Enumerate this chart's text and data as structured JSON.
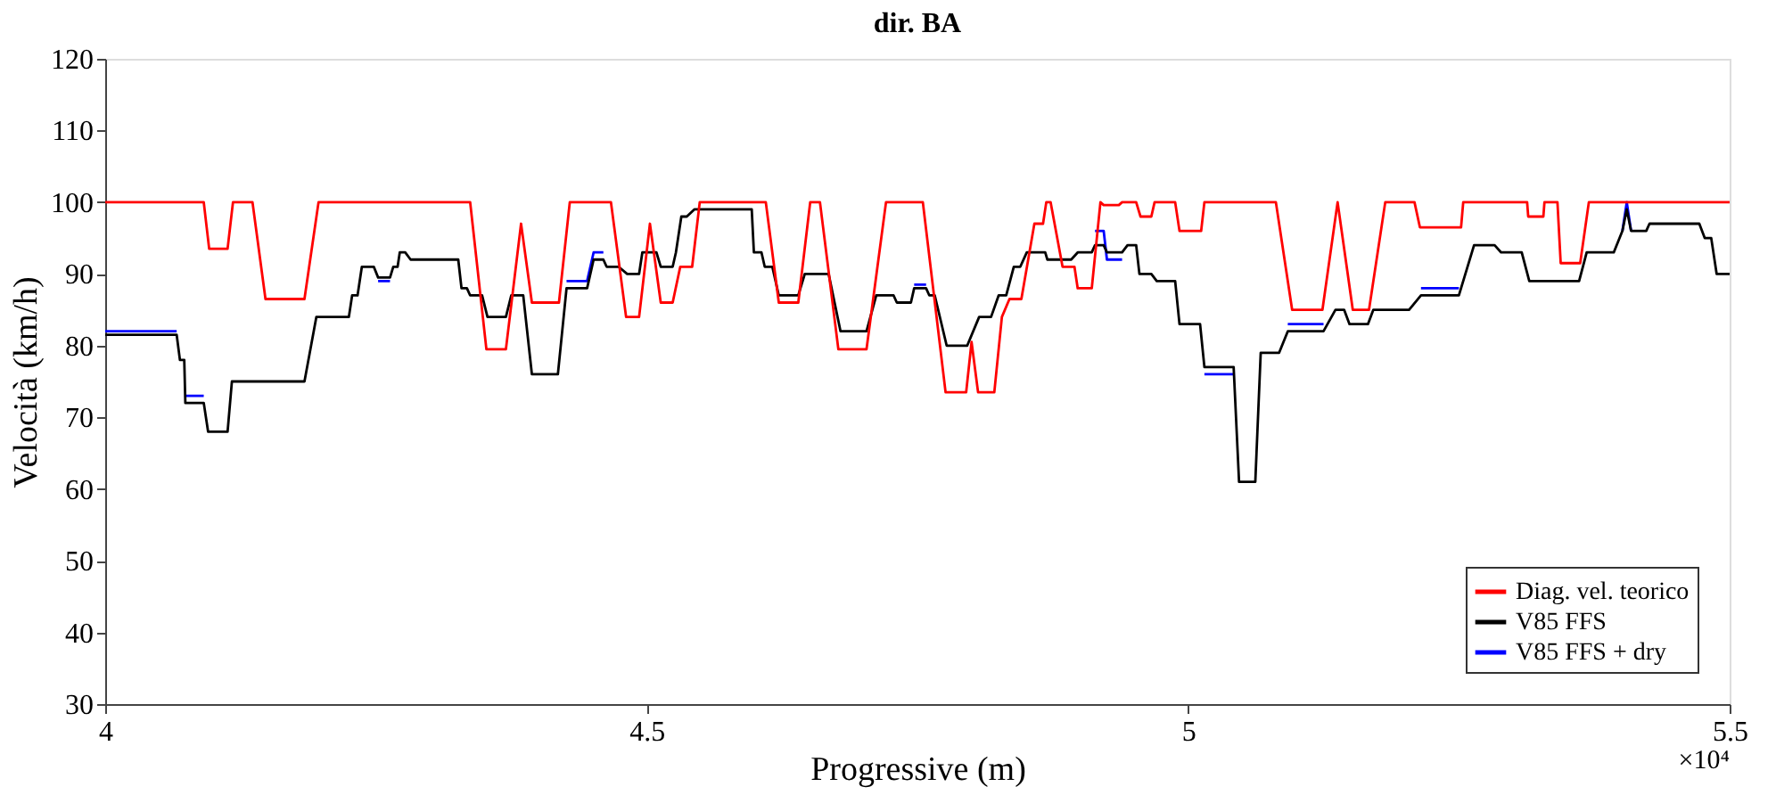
{
  "chart_data": {
    "type": "line",
    "title": "dir. BA",
    "xlabel": "Progressive (m)",
    "ylabel": "Velocità (km/h)",
    "xlim": [
      4,
      5.5
    ],
    "xticks": [
      4,
      4.5,
      5,
      5.5
    ],
    "ylim": [
      30,
      120
    ],
    "yticks": [
      30,
      40,
      50,
      60,
      70,
      80,
      90,
      100,
      110,
      120
    ],
    "grid": false,
    "legend": "bottom right",
    "marker": "none",
    "line_style": "solid",
    "annotations": [
      "×10⁴"
    ],
    "series": [
      {
        "name": "Diag. vel. teorico",
        "color": "#ff0000",
        "x": [
          4.0,
          4.091,
          4.096,
          4.113,
          4.118,
          4.136,
          4.148,
          4.184,
          4.197,
          4.337,
          4.352,
          4.37,
          4.384,
          4.394,
          4.419,
          4.429,
          4.467,
          4.481,
          4.493,
          4.503,
          4.513,
          4.524,
          4.531,
          4.542,
          4.549,
          4.61,
          4.622,
          4.64,
          4.651,
          4.66,
          4.677,
          4.703,
          4.721,
          4.755,
          4.776,
          4.795,
          4.8,
          4.806,
          4.821,
          4.828,
          4.835,
          4.846,
          4.858,
          4.866,
          4.869,
          4.873,
          4.884,
          4.895,
          4.898,
          4.911,
          4.919,
          4.922,
          4.936,
          4.939,
          4.952,
          4.956,
          4.966,
          4.969,
          4.988,
          4.992,
          5.012,
          5.015,
          5.081,
          5.096,
          5.124,
          5.138,
          5.152,
          5.167,
          5.182,
          5.209,
          5.214,
          5.252,
          5.254,
          5.313,
          5.314,
          5.328,
          5.329,
          5.341,
          5.344,
          5.362,
          5.37,
          5.5
        ],
        "values": [
          100,
          100,
          93.5,
          93.5,
          100,
          100,
          86.5,
          86.5,
          100,
          100,
          79.5,
          79.5,
          97,
          86,
          86,
          100,
          100,
          84,
          84,
          97,
          86,
          86,
          91,
          91,
          100,
          100,
          86,
          86,
          100,
          100,
          79.5,
          79.5,
          100,
          100,
          73.5,
          73.5,
          80.5,
          73.5,
          73.5,
          84,
          86.5,
          86.5,
          97,
          97,
          100,
          100,
          91,
          91,
          88,
          88,
          100,
          99.6,
          99.6,
          100,
          100,
          98,
          98,
          100,
          100,
          96,
          96,
          100,
          100,
          85,
          85,
          100,
          85,
          85,
          100,
          100,
          96.5,
          96.5,
          100,
          100,
          98,
          98,
          100,
          100,
          91.5,
          91.5,
          100,
          100
        ]
      },
      {
        "name": "V85 FFS",
        "color": "#000000",
        "x": [
          4.0,
          4.066,
          4.069,
          4.073,
          4.074,
          4.091,
          4.095,
          4.113,
          4.117,
          4.184,
          4.195,
          4.225,
          4.228,
          4.233,
          4.237,
          4.248,
          4.252,
          4.263,
          4.266,
          4.27,
          4.272,
          4.277,
          4.282,
          4.326,
          4.329,
          4.334,
          4.337,
          4.348,
          4.353,
          4.37,
          4.375,
          4.386,
          4.394,
          4.418,
          4.426,
          4.445,
          4.451,
          4.46,
          4.463,
          4.474,
          4.482,
          4.493,
          4.496,
          4.509,
          4.513,
          4.524,
          4.527,
          4.532,
          4.537,
          4.544,
          4.597,
          4.599,
          4.606,
          4.609,
          4.616,
          4.622,
          4.64,
          4.646,
          4.668,
          4.679,
          4.703,
          4.712,
          4.728,
          4.731,
          4.744,
          4.747,
          4.758,
          4.761,
          4.766,
          4.777,
          4.796,
          4.807,
          4.818,
          4.825,
          4.832,
          4.839,
          4.845,
          4.851,
          4.868,
          4.87,
          4.892,
          4.898,
          4.911,
          4.914,
          4.922,
          4.925,
          4.939,
          4.944,
          4.952,
          4.955,
          4.966,
          4.971,
          4.988,
          4.992,
          5.011,
          5.015,
          5.042,
          5.047,
          5.062,
          5.067,
          5.084,
          5.092,
          5.125,
          5.136,
          5.144,
          5.149,
          5.166,
          5.171,
          5.204,
          5.215,
          5.25,
          5.264,
          5.283,
          5.289,
          5.308,
          5.315,
          5.361,
          5.368,
          5.393,
          5.401,
          5.405,
          5.409,
          5.423,
          5.426,
          5.472,
          5.477,
          5.483,
          5.488,
          5.5
        ],
        "values": [
          81.5,
          81.5,
          78,
          78,
          72,
          72,
          68,
          68,
          75,
          75,
          84,
          84,
          87,
          87,
          91,
          91,
          89.5,
          89.5,
          91,
          91,
          93,
          93,
          92,
          92,
          88,
          88,
          87,
          87,
          84,
          84,
          87,
          87,
          76,
          76,
          88,
          88,
          92,
          92,
          91,
          91,
          90,
          90,
          93,
          93,
          91,
          91,
          93,
          98,
          98,
          99,
          99,
          93,
          93,
          91,
          91,
          87,
          87,
          90,
          90,
          82,
          82,
          87,
          87,
          86,
          86,
          88,
          88,
          87,
          87,
          80,
          80,
          84,
          84,
          87,
          87,
          91,
          91,
          93,
          93,
          92,
          92,
          93,
          93,
          94,
          94,
          93,
          93,
          94,
          94,
          90,
          90,
          89,
          89,
          83,
          83,
          77,
          77,
          61,
          61,
          79,
          79,
          82,
          82,
          85,
          85,
          83,
          83,
          85,
          85,
          87,
          87,
          94,
          94,
          93,
          93,
          89,
          89,
          93,
          93,
          96,
          99,
          96,
          96,
          97,
          97,
          95,
          95,
          90,
          90
        ]
      },
      {
        "name": "V85 FFS + dry",
        "color": "#0000ff",
        "x": [
          4.0,
          4.066,
          4.069,
          4.073,
          4.074,
          4.091,
          4.095,
          4.113,
          4.117,
          4.184,
          4.195,
          4.225,
          4.228,
          4.233,
          4.237,
          4.248,
          4.252,
          4.263,
          4.266,
          4.27,
          4.272,
          4.277,
          4.282,
          4.326,
          4.329,
          4.334,
          4.337,
          4.348,
          4.353,
          4.37,
          4.375,
          4.386,
          4.394,
          4.418,
          4.426,
          4.445,
          4.451,
          4.46,
          4.463,
          4.474,
          4.482,
          4.493,
          4.496,
          4.509,
          4.513,
          4.524,
          4.527,
          4.532,
          4.537,
          4.544,
          4.597,
          4.599,
          4.606,
          4.609,
          4.616,
          4.622,
          4.64,
          4.646,
          4.668,
          4.679,
          4.703,
          4.712,
          4.728,
          4.731,
          4.744,
          4.747,
          4.758,
          4.761,
          4.766,
          4.777,
          4.796,
          4.807,
          4.818,
          4.825,
          4.832,
          4.839,
          4.845,
          4.851,
          4.868,
          4.87,
          4.892,
          4.898,
          4.911,
          4.914,
          4.922,
          4.925,
          4.939,
          4.944,
          4.952,
          4.955,
          4.966,
          4.971,
          4.988,
          4.992,
          5.011,
          5.015,
          5.042,
          5.047,
          5.062,
          5.067,
          5.084,
          5.092,
          5.125,
          5.136,
          5.144,
          5.149,
          5.166,
          5.171,
          5.204,
          5.215,
          5.25,
          5.264,
          5.283,
          5.289,
          5.308,
          5.315,
          5.361,
          5.368,
          5.393,
          5.401,
          5.405,
          5.409
        ],
        "values": [
          82,
          82,
          null,
          null,
          73,
          73,
          null,
          null,
          null,
          null,
          null,
          null,
          null,
          null,
          null,
          null,
          89,
          89,
          null,
          null,
          null,
          null,
          null,
          null,
          null,
          null,
          null,
          null,
          null,
          null,
          null,
          null,
          null,
          null,
          89,
          89,
          93,
          93,
          null,
          null,
          null,
          null,
          null,
          null,
          null,
          null,
          null,
          null,
          null,
          null,
          null,
          null,
          null,
          null,
          null,
          null,
          null,
          null,
          null,
          null,
          null,
          null,
          null,
          null,
          null,
          88.5,
          88.5,
          null,
          null,
          null,
          null,
          null,
          null,
          null,
          null,
          null,
          null,
          null,
          null,
          null,
          null,
          null,
          null,
          96,
          96,
          92,
          92,
          null,
          null,
          null,
          null,
          null,
          null,
          null,
          null,
          76,
          76,
          null,
          null,
          null,
          null,
          83,
          83,
          null,
          null,
          null,
          null,
          null,
          null,
          88,
          88,
          null,
          null,
          null,
          null,
          null,
          null,
          null,
          null,
          96,
          100,
          96
        ]
      }
    ]
  }
}
